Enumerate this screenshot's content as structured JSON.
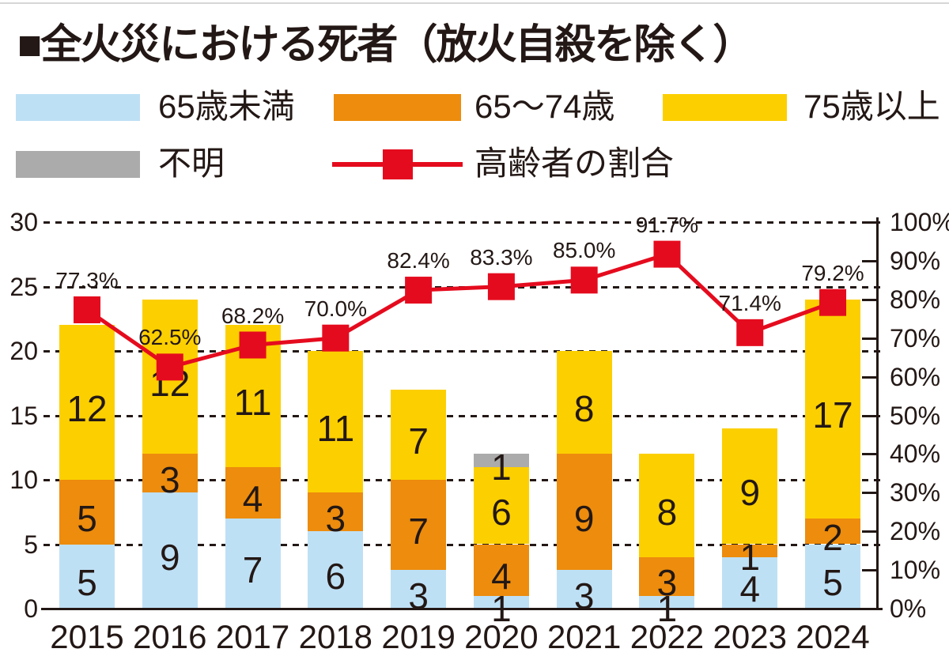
{
  "title": "■全火災における死者（放火自殺を除く）",
  "legend": {
    "items": [
      {
        "label": "65歳未満",
        "color": "#bee0f5",
        "type": "box"
      },
      {
        "label": "65〜74歳",
        "color": "#ed8c0d",
        "type": "box"
      },
      {
        "label": "75歳以上",
        "color": "#fccf00",
        "type": "box"
      },
      {
        "label": "不明",
        "color": "#ababab",
        "type": "box"
      },
      {
        "label": "高齢者の割合",
        "color": "#e50b1e",
        "type": "line"
      }
    ]
  },
  "colors": {
    "under65": "#bee0f5",
    "age65to74": "#ed8c0d",
    "age75plus": "#fccf00",
    "unknown": "#ababab",
    "line": "#e50b1e",
    "text": "#231815"
  },
  "chart_data": {
    "type": "bar",
    "subtype": "stacked-bars-with-percent-line",
    "title": "全火災における死者（放火自殺を除く）",
    "categories": [
      "2015",
      "2016",
      "2017",
      "2018",
      "2019",
      "2020",
      "2021",
      "2022",
      "2023",
      "2024"
    ],
    "series": [
      {
        "name": "65歳未満",
        "color": "#bee0f5",
        "values": [
          5,
          9,
          7,
          6,
          3,
          1,
          3,
          1,
          4,
          5
        ]
      },
      {
        "name": "65〜74歳",
        "color": "#ed8c0d",
        "values": [
          5,
          3,
          4,
          3,
          7,
          4,
          9,
          3,
          1,
          2
        ]
      },
      {
        "name": "75歳以上",
        "color": "#fccf00",
        "values": [
          12,
          12,
          11,
          11,
          7,
          6,
          8,
          8,
          9,
          17
        ]
      },
      {
        "name": "不明",
        "color": "#ababab",
        "values": [
          0,
          0,
          0,
          0,
          0,
          1,
          0,
          0,
          0,
          0
        ]
      }
    ],
    "line_series": {
      "name": "高齢者の割合",
      "color": "#e50b1e",
      "values_pct": [
        77.3,
        62.5,
        68.2,
        70.0,
        82.4,
        83.3,
        85.0,
        91.7,
        71.4,
        79.2
      ],
      "labels": [
        "77.3%",
        "62.5%",
        "68.2%",
        "70.0%",
        "82.4%",
        "83.3%",
        "85.0%",
        "91.7%",
        "71.4%",
        "79.2%"
      ]
    },
    "left_axis": {
      "ticks": [
        0,
        5,
        10,
        15,
        20,
        25,
        30
      ],
      "min": 0,
      "max": 30
    },
    "right_axis": {
      "ticks": [
        "0%",
        "10%",
        "20%",
        "30%",
        "40%",
        "50%",
        "60%",
        "70%",
        "80%",
        "90%",
        "100%"
      ],
      "min": 0,
      "max": 100
    },
    "grid": "horizontal dashed lines at every 5 units, solid baseline at 0",
    "legend_position": "top"
  }
}
